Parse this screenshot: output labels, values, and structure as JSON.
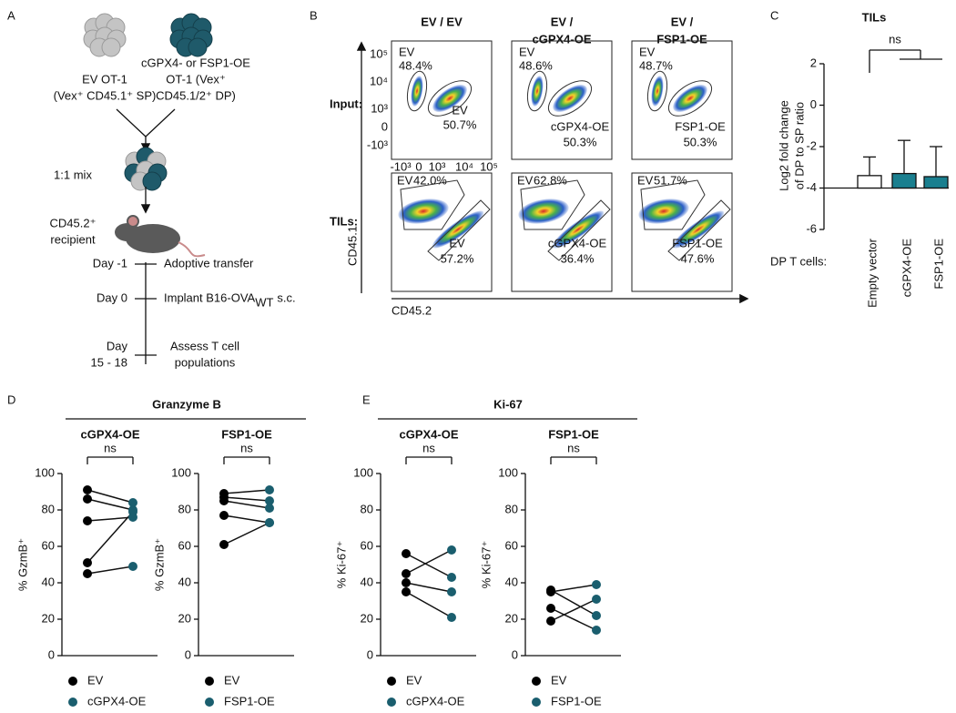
{
  "panel_a": {
    "letter": "A",
    "left_cells": [
      "EV OT-1",
      "(Vex⁺ CD45.1⁺ SP)"
    ],
    "right_cells": [
      "cGPX4- or FSP1-OE",
      "OT-1 (Vex⁺",
      "CD45.1/2⁺ DP)"
    ],
    "mix": "1:1 mix",
    "recipient": [
      "CD45.2⁺",
      "recipient"
    ],
    "timeline": [
      {
        "day": [
          "Day -1"
        ],
        "event": [
          "Adoptive transfer"
        ]
      },
      {
        "day": [
          "Day 0"
        ],
        "event": [
          "Implant B16-OVA",
          "WT",
          "s.c."
        ]
      },
      {
        "day": [
          "Day",
          "15 - 18"
        ],
        "event": [
          "Assess T cell",
          "populations"
        ]
      }
    ]
  },
  "panel_b": {
    "letter": "B",
    "rows": [
      "Input:",
      "TILs:"
    ],
    "y_label": "CD45.1",
    "x_label": "CD45.2",
    "y_ticks": [
      "10⁵",
      "10⁴",
      "10³",
      "0",
      "-10³"
    ],
    "x_ticks": [
      "-10³",
      "0",
      "10³",
      "10⁴",
      "10⁵"
    ],
    "columns": [
      {
        "header": [
          "EV / EV"
        ],
        "input_gates": [
          {
            "name": "EV",
            "pct": "48.4%"
          },
          {
            "name": "EV",
            "pct": "50.7%"
          }
        ],
        "til_gates": [
          {
            "name": "EV",
            "pct": "42.0%"
          },
          {
            "name": "EV",
            "pct": "57.2%"
          }
        ]
      },
      {
        "header": [
          "EV /",
          "cGPX4-OE"
        ],
        "input_gates": [
          {
            "name": "EV",
            "pct": "48.6%"
          },
          {
            "name": "cGPX4-OE",
            "pct": "50.3%"
          }
        ],
        "til_gates": [
          {
            "name": "EV",
            "pct": "62.8%"
          },
          {
            "name": "cGPX4-OE",
            "pct": "36.4%"
          }
        ]
      },
      {
        "header": [
          "EV /",
          "FSP1-OE"
        ],
        "input_gates": [
          {
            "name": "EV",
            "pct": "48.7%"
          },
          {
            "name": "FSP1-OE",
            "pct": "50.3%"
          }
        ],
        "til_gates": [
          {
            "name": "EV",
            "pct": "51.7%"
          },
          {
            "name": "FSP1-OE",
            "pct": "47.6%"
          }
        ]
      }
    ]
  },
  "panel_c": {
    "letter": "C",
    "x_caption": "DP T cells:"
  },
  "panel_d": {
    "letter": "D",
    "title": "Granzyme B"
  },
  "panel_e": {
    "letter": "E",
    "title": "Ki-67"
  },
  "chart_data": [
    {
      "type": "bar",
      "title": "TILs",
      "y_label": [
        "Log2 fold change",
        "of DP to SP ratio"
      ],
      "categories": [
        "Empty vector",
        "cGPX4-OE",
        "FSP1-OE"
      ],
      "values": [
        -3.4,
        -3.3,
        -3.45
      ],
      "errors": [
        0.9,
        1.6,
        1.45
      ],
      "colors": [
        "#ffffff",
        "#1a7f8f",
        "#1a7f8f"
      ],
      "baseline": -4,
      "ylim": [
        -6,
        2
      ],
      "yticks": [
        2,
        0,
        -2,
        -4,
        -6
      ],
      "annotation": "ns"
    },
    {
      "type": "paired",
      "title": "cGPX4-OE",
      "y_label": "% GzmB⁺",
      "annotation": "ns",
      "series": [
        {
          "name": "EV",
          "color": "#000000",
          "values": [
            91,
            86,
            74,
            51,
            45
          ]
        },
        {
          "name": "cGPX4-OE",
          "color": "#1a5e6e",
          "values": [
            84,
            80,
            76,
            79,
            49
          ]
        }
      ],
      "ylim": [
        0,
        100
      ],
      "yticks": [
        0,
        20,
        40,
        60,
        80,
        100
      ]
    },
    {
      "type": "paired",
      "title": "FSP1-OE",
      "y_label": "% GzmB⁺",
      "annotation": "ns",
      "series": [
        {
          "name": "EV",
          "color": "#000000",
          "values": [
            89,
            87,
            85,
            77,
            61
          ]
        },
        {
          "name": "FSP1-OE",
          "color": "#1a5e6e",
          "values": [
            91,
            85,
            81,
            73,
            73
          ]
        }
      ],
      "ylim": [
        0,
        100
      ],
      "yticks": [
        0,
        20,
        40,
        60,
        80,
        100
      ]
    },
    {
      "type": "paired",
      "title": "cGPX4-OE",
      "y_label": "% Ki-67⁺",
      "annotation": "ns",
      "series": [
        {
          "name": "EV",
          "color": "#000000",
          "values": [
            56,
            45,
            40,
            35
          ]
        },
        {
          "name": "cGPX4-OE",
          "color": "#1a5e6e",
          "values": [
            43,
            58,
            35,
            21
          ]
        }
      ],
      "ylim": [
        0,
        100
      ],
      "yticks": [
        0,
        20,
        40,
        60,
        80,
        100
      ]
    },
    {
      "type": "paired",
      "title": "FSP1-OE",
      "y_label": "% Ki-67⁺",
      "annotation": "ns",
      "series": [
        {
          "name": "EV",
          "color": "#000000",
          "values": [
            36,
            35,
            26,
            19
          ]
        },
        {
          "name": "FSP1-OE",
          "color": "#1a5e6e",
          "values": [
            22,
            39,
            14,
            31
          ]
        }
      ],
      "ylim": [
        0,
        100
      ],
      "yticks": [
        0,
        20,
        40,
        60,
        80,
        100
      ]
    }
  ]
}
